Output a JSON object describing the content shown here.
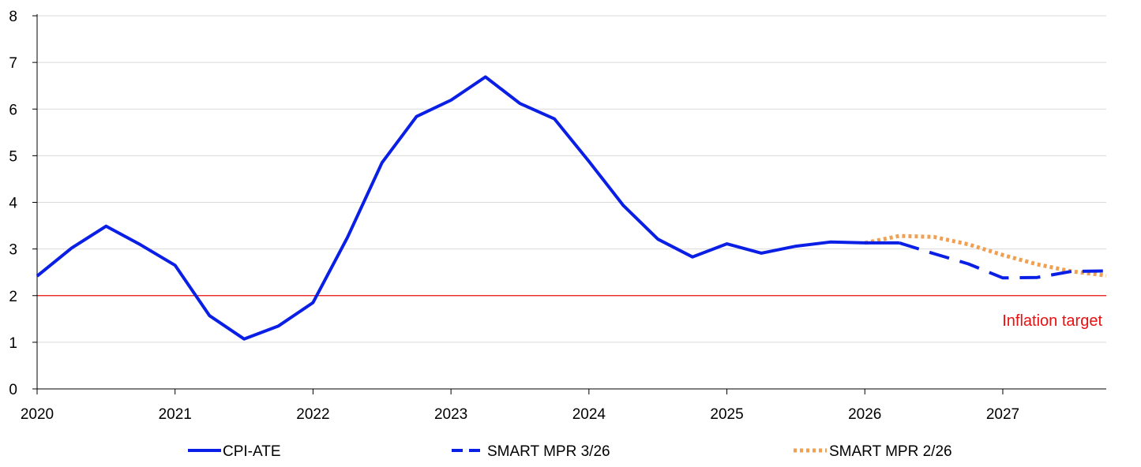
{
  "chart_data": {
    "type": "line",
    "title": "",
    "xlabel": "",
    "ylabel": "",
    "x_ticks": [
      "2020",
      "2021",
      "2022",
      "2023",
      "2024",
      "2025",
      "2026",
      "2027"
    ],
    "xlim": [
      2020.0,
      2027.75
    ],
    "ylim": [
      0,
      8
    ],
    "y_ticks": [
      "0",
      "1",
      "2",
      "3",
      "4",
      "5",
      "6",
      "7",
      "8"
    ],
    "grid": true,
    "series": [
      {
        "name": "CPI-ATE",
        "style": "solid",
        "color": "#0a1fe6",
        "x": [
          2020.0,
          2020.25,
          2020.5,
          2020.75,
          2021.0,
          2021.25,
          2021.5,
          2021.75,
          2022.0,
          2022.25,
          2022.5,
          2022.75,
          2023.0,
          2023.25,
          2023.5,
          2023.75,
          2024.0,
          2024.25,
          2024.5,
          2024.75,
          2025.0,
          2025.25,
          2025.5,
          2025.75,
          2026.0,
          2026.25
        ],
        "values": [
          2.42,
          3.02,
          3.49,
          3.09,
          2.65,
          1.57,
          1.07,
          1.35,
          1.85,
          3.25,
          4.85,
          5.84,
          6.19,
          6.69,
          6.12,
          5.79,
          4.88,
          3.93,
          3.21,
          2.83,
          3.11,
          2.91,
          3.06,
          3.15,
          3.13,
          3.13
        ]
      },
      {
        "name": "SMART MPR 3/26",
        "style": "dashed",
        "color": "#0a1fe6",
        "x": [
          2026.25,
          2026.5,
          2026.75,
          2027.0,
          2027.25,
          2027.5,
          2027.75
        ],
        "values": [
          3.13,
          2.9,
          2.68,
          2.38,
          2.39,
          2.52,
          2.53
        ]
      },
      {
        "name": "SMART MPR 2/26",
        "style": "dotted",
        "color": "#f0a050",
        "x": [
          2026.0,
          2026.25,
          2026.5,
          2026.75,
          2027.0,
          2027.25,
          2027.5,
          2027.75
        ],
        "values": [
          3.13,
          3.28,
          3.26,
          3.1,
          2.87,
          2.67,
          2.52,
          2.43
        ]
      }
    ],
    "reference_line": {
      "value": 2,
      "label": "Inflation target",
      "color": "#e81010"
    },
    "legend": {
      "placement": "bottom",
      "entries": [
        "CPI-ATE",
        "SMART MPR 3/26",
        "SMART MPR 2/26"
      ]
    }
  }
}
